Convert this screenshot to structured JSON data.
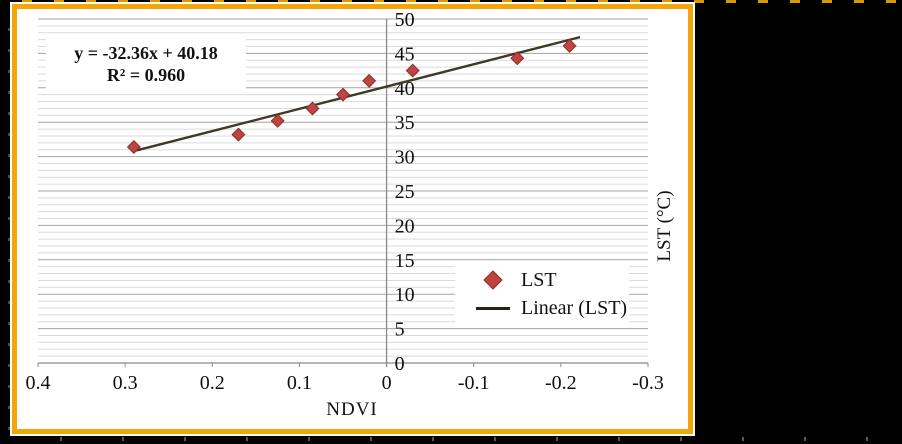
{
  "equation": {
    "line1": "y = -32.36x + 40.18",
    "line2": "R² = 0.960"
  },
  "legend": {
    "items": [
      {
        "label": "LST",
        "marker": "diamond"
      },
      {
        "label": "Linear (LST)",
        "marker": "line"
      }
    ]
  },
  "frame": {
    "border_color": "#f2a60c",
    "background": "#ffffff"
  },
  "chart_data": {
    "type": "scatter",
    "title": "",
    "xlabel": "NDVI",
    "ylabel": "LST (°C)",
    "xlim": [
      0.4,
      -0.3
    ],
    "ylim": [
      0,
      50
    ],
    "x_axis_reversed": true,
    "grid": "horizontal-minor-and-major",
    "y_major_step": 5,
    "y_minor_step": 1,
    "x_ticks": [
      0.4,
      0.3,
      0.2,
      0.1,
      0,
      -0.1,
      -0.2,
      -0.3
    ],
    "x_tick_labels": [
      "0.4",
      "0.3",
      "0.2",
      "0.1",
      "0",
      "-0.1",
      "-0.2",
      "-0.3"
    ],
    "y_ticks": [
      0,
      5,
      10,
      15,
      20,
      25,
      30,
      35,
      40,
      45,
      50
    ],
    "y_tick_labels": [
      "0",
      "5",
      "10",
      "15",
      "20",
      "25",
      "30",
      "35",
      "40",
      "45",
      "50"
    ],
    "legend_position": "inside-lower-right",
    "series": [
      {
        "name": "LST",
        "marker": "diamond",
        "points": [
          [
            0.29,
            31.4
          ],
          [
            0.17,
            33.2
          ],
          [
            0.125,
            35.2
          ],
          [
            0.085,
            37.0
          ],
          [
            0.05,
            39.0
          ],
          [
            0.02,
            41.0
          ],
          [
            -0.03,
            42.5
          ],
          [
            -0.15,
            44.3
          ],
          [
            -0.21,
            46.1
          ]
        ]
      }
    ],
    "trendline": {
      "name": "Linear (LST)",
      "slope": -32.36,
      "intercept": 40.18,
      "r_squared": 0.96,
      "x_start": 0.287,
      "x_end": -0.222
    },
    "colors": {
      "marker_fill": "#be4540",
      "marker_stroke": "#8e2b28",
      "trendline": "#3e3a25",
      "legend_line": "#26231a",
      "grid_minor": "#dbdbdb",
      "grid_major": "#a3a3a3",
      "axis": "#8a8a8a",
      "text": "#111111"
    }
  }
}
